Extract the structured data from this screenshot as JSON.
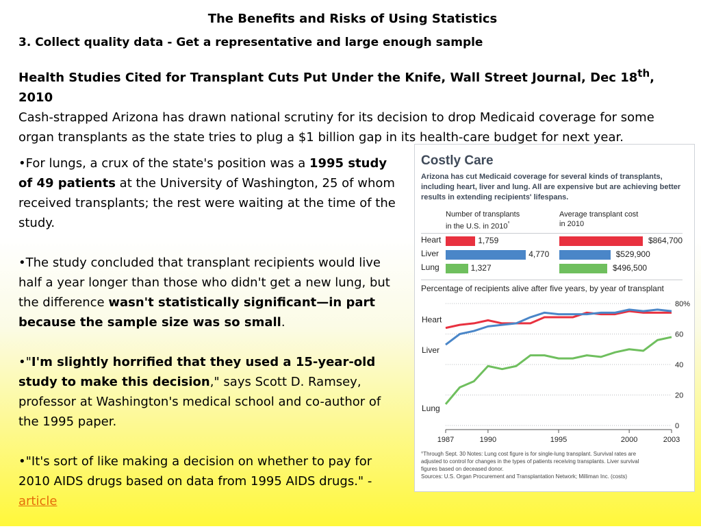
{
  "slide": {
    "title": "The Benefits and Risks of Using Statistics",
    "subtitle": "3. Collect quality data -  Get a representative and large enough sample",
    "headline_pre": "Health Studies Cited for Transplant Cuts Put Under the Knife, Wall Street Journal, Dec 18",
    "headline_sup": "th",
    "headline_post": ", 2010",
    "intro_text": "Cash-strapped Arizona has drawn national scrutiny for its decision to drop Medicaid coverage for some organ transplants as the state tries to plug a $1 billion gap in its health-care budget for next year.",
    "bullets": [
      {
        "a": "•For lungs, a crux of the state's position was a ",
        "b": "1995 study of 49 patients",
        "c": " at the University of Washington, 25 of whom received transplants; the rest were waiting at the time of the study."
      },
      {
        "a": "•The study concluded that transplant recipients would live half a year longer than those who didn't get a new lung, but the difference ",
        "b": "wasn't statistically significant—in part because the sample size was so small",
        "c": "."
      },
      {
        "a": "•\"",
        "b": "I'm slightly horrified that they used a 15-year-old study to make this decision",
        "c": ",\" says Scott D. Ramsey, professor at Washington's medical school and co-author of the 1995 paper."
      }
    ],
    "last_bullet": "•\"It's sort of like making a decision on whether to pay for 2010 AIDS drugs based on data from 1995 AIDS drugs.\"  - ",
    "link_text": "article"
  },
  "infographic": {
    "title": "Costly Care",
    "description": "Arizona has cut Medicaid coverage for several kinds of transplants, including heart, liver and lung. All are expensive but are achieving better results in extending recipients' lifespans.",
    "col1_line1": "Number of transplants",
    "col1_line2": "in the U.S. in 2010",
    "col1_mark": "°",
    "col2_line1": "Average transplant cost",
    "col2_line2": "in 2010",
    "footnote_1": "°Through Sept. 30    Notes: Lung cost figure is for single-lung transplant. Survival rates are",
    "footnote_2": "adjusted to control for changes in the types of patients receiving transplants. Liver survival",
    "footnote_3": "figures based on deceased donor.",
    "footnote_4": "Sources: U.S. Organ Procurement and Transplantation Network; Milliman Inc. (costs)"
  },
  "chart_data": [
    {
      "type": "bar",
      "categories": [
        "Heart",
        "Liver",
        "Lung"
      ],
      "values": [
        1759,
        4770,
        1327
      ],
      "value_labels": [
        "1,759",
        "4,770",
        "1,327"
      ],
      "colors": [
        "#e8313f",
        "#4a86c8",
        "#6fbf5e"
      ],
      "title": "Number of transplants in the U.S. in 2010°",
      "xlim": [
        0,
        4800
      ]
    },
    {
      "type": "bar",
      "categories": [
        "Heart",
        "Liver",
        "Lung"
      ],
      "values": [
        864700,
        529900,
        496500
      ],
      "value_labels": [
        "$864,700",
        "$529,900",
        "$496,500"
      ],
      "colors": [
        "#e8313f",
        "#4a86c8",
        "#6fbf5e"
      ],
      "title": "Average transplant cost in 2010",
      "xlim": [
        0,
        864700
      ]
    },
    {
      "type": "line",
      "title": "Percentage of recipients alive after five years, by year of transplant",
      "ylim": [
        0,
        80
      ],
      "yticks": [
        0,
        20,
        40,
        60,
        80
      ],
      "ytick_labels": [
        "0",
        "20",
        "40",
        "60",
        "80%"
      ],
      "xlim": [
        1987,
        2003
      ],
      "xticks": [
        1987,
        1990,
        1995,
        2000,
        2003
      ],
      "grid": true,
      "x": [
        1987,
        1988,
        1989,
        1990,
        1991,
        1992,
        1993,
        1994,
        1995,
        1996,
        1997,
        1998,
        1999,
        2000,
        2001,
        2002,
        2003
      ],
      "series": [
        {
          "name": "Heart",
          "color": "#e8313f",
          "values": [
            64,
            66,
            67,
            69,
            67,
            67,
            67,
            71,
            71,
            71,
            74,
            73,
            73,
            75,
            74,
            74,
            74
          ]
        },
        {
          "name": "Liver",
          "color": "#4a86c8",
          "values": [
            53,
            60,
            62,
            65,
            66,
            67,
            71,
            74,
            73,
            73,
            73,
            74,
            74,
            76,
            75,
            76,
            75
          ]
        },
        {
          "name": "Lung",
          "color": "#6fbf5e",
          "values": [
            14,
            25,
            29,
            39,
            37,
            39,
            46,
            46,
            44,
            44,
            46,
            45,
            48,
            50,
            49,
            56,
            58
          ]
        }
      ]
    }
  ]
}
